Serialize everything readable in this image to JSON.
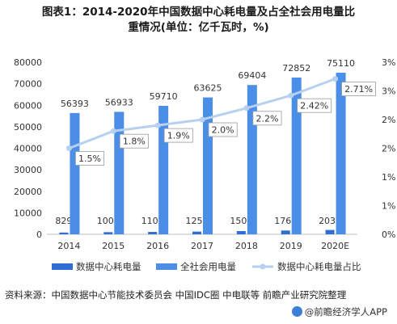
{
  "header": {
    "title_line1": "图表1：2014-2020年中国数据中心耗电量及占全社会用电量比",
    "title_line2": "重情况(单位：亿千瓦时，%)"
  },
  "footer": {
    "source": "资料来源：中国数据中心节能技术委员会 中国IDC圈 中电联等 前瞻产业研究院整理",
    "brand": "@前瞻经济学人APP"
  },
  "colors": {
    "bar_dc": "#2f6fd1",
    "bar_total": "#4a8ee8",
    "line": "#b7d0f0",
    "axis_text": "#333333"
  },
  "chart_data": {
    "type": "bar",
    "categories": [
      "2014",
      "2015",
      "2016",
      "2017",
      "2018",
      "2019",
      "2020E"
    ],
    "series": [
      {
        "name": "数据中心耗电量",
        "type": "bar",
        "axis": "left",
        "values": [
          829,
          1000,
          1108,
          1250,
          1500,
          1763,
          2035
        ]
      },
      {
        "name": "全社会用电量",
        "type": "bar",
        "axis": "left",
        "values": [
          56393,
          56933,
          59710,
          63625,
          69404,
          72852,
          75110
        ]
      },
      {
        "name": "数据中心耗电量占比",
        "type": "line",
        "axis": "right",
        "values": [
          1.5,
          1.8,
          1.9,
          2.0,
          2.2,
          2.42,
          2.71
        ],
        "labels": [
          "1.5%",
          "1.8%",
          "1.9%",
          "2.0%",
          "2.2%",
          "2.42%",
          "2.71%"
        ]
      }
    ],
    "y_left": {
      "min": 0,
      "max": 80000,
      "ticks": [
        "0",
        "10000",
        "20000",
        "30000",
        "40000",
        "50000",
        "60000",
        "70000",
        "80000"
      ]
    },
    "y_right": {
      "min": 0,
      "max": 3,
      "tick_labels": [
        "0%",
        "1%",
        "1%",
        "2%",
        "2%",
        "3%",
        "3%"
      ]
    },
    "legend": "bottom",
    "grid": false
  }
}
